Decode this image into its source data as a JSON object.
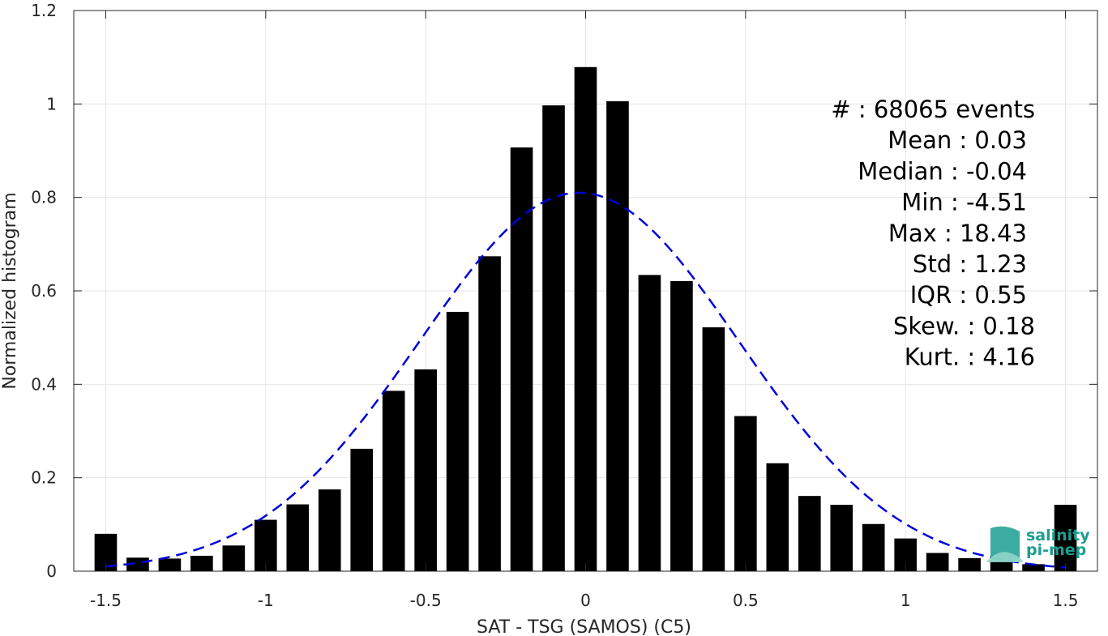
{
  "chart_data": {
    "type": "bar",
    "xlabel": "SAT - TSG (SAMOS) (C5)",
    "ylabel": "Normalized histogram",
    "xlim": [
      -1.6,
      1.6
    ],
    "ylim": [
      0,
      1.2
    ],
    "xticks": [
      -1.5,
      -1,
      -0.5,
      0,
      0.5,
      1,
      1.5
    ],
    "xtick_labels": [
      "-1.5",
      "-1",
      "-0.5",
      "0",
      "0.5",
      "1",
      "1.5"
    ],
    "yticks": [
      0,
      0.2,
      0.4,
      0.6,
      0.8,
      1,
      1.2
    ],
    "ytick_labels": [
      "0",
      "0.2",
      "0.4",
      "0.6",
      "0.8",
      "1",
      "1.2"
    ],
    "grid": true,
    "bar_width": 0.07,
    "bar_color": "#000000",
    "bars": {
      "x": [
        -1.5,
        -1.4,
        -1.3,
        -1.2,
        -1.1,
        -1.0,
        -0.9,
        -0.8,
        -0.7,
        -0.6,
        -0.5,
        -0.4,
        -0.3,
        -0.2,
        -0.1,
        0.0,
        0.1,
        0.2,
        0.3,
        0.4,
        0.5,
        0.6,
        0.7,
        0.8,
        0.9,
        1.0,
        1.1,
        1.2,
        1.3,
        1.4,
        1.5
      ],
      "values": [
        0.08,
        0.029,
        0.027,
        0.033,
        0.055,
        0.11,
        0.143,
        0.175,
        0.262,
        0.386,
        0.432,
        0.555,
        0.674,
        0.907,
        0.997,
        1.079,
        1.006,
        0.634,
        0.621,
        0.522,
        0.332,
        0.231,
        0.161,
        0.142,
        0.101,
        0.07,
        0.039,
        0.028,
        0.022,
        0.015,
        0.142
      ]
    },
    "fit_curve": {
      "style": "dashed",
      "color": "#0000dd",
      "mean": -0.02,
      "std": 0.5,
      "peak": 0.81,
      "x_range": [
        -1.5,
        1.5
      ]
    },
    "stats": [
      {
        "label": "#  : 68065 events"
      },
      {
        "label": "Mean : 0.03"
      },
      {
        "label": "Median : -0.04"
      },
      {
        "label": "Min : -4.51"
      },
      {
        "label": "Max : 18.43"
      },
      {
        "label": "Std : 1.23"
      },
      {
        "label": "IQR : 0.55"
      },
      {
        "label": "Skew. : 0.18"
      },
      {
        "label": "Kurt. : 4.16"
      }
    ]
  },
  "logo": {
    "line1": "salinity",
    "line2": "pi-mep",
    "color": "#1a9e8f"
  }
}
